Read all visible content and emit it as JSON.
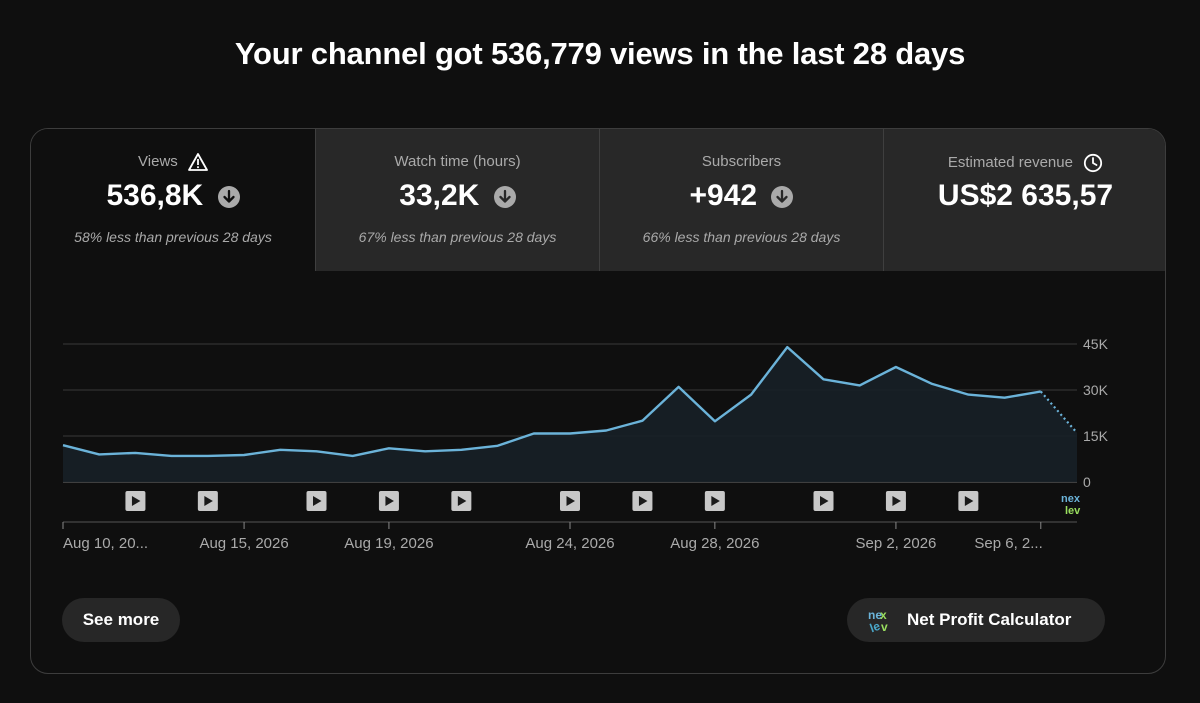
{
  "headline": "Your channel got 536,779 views in the last 28 days",
  "tabs": [
    {
      "label": "Views",
      "value": "536,8K",
      "note": "58% less than previous 28 days",
      "icon": "warning-icon",
      "trend_icon": "arrow-down-icon"
    },
    {
      "label": "Watch time (hours)",
      "value": "33,2K",
      "note": "67% less than previous 28 days",
      "trend_icon": "arrow-down-icon"
    },
    {
      "label": "Subscribers",
      "value": "+942",
      "note": "66% less than previous 28 days",
      "trend_icon": "arrow-down-icon"
    },
    {
      "label": "Estimated revenue",
      "value": "US$2 635,57",
      "note": "",
      "icon": "clock-icon"
    }
  ],
  "buttons": {
    "see_more": "See more",
    "calculator": "Net Profit Calculator",
    "calculator_logo": "nexlev"
  },
  "chart_data": {
    "type": "area",
    "ylim": [
      0,
      45000
    ],
    "y_ticks": [
      {
        "value": 0,
        "label": "0"
      },
      {
        "value": 15000,
        "label": "15K"
      },
      {
        "value": 30000,
        "label": "30K"
      },
      {
        "value": 45000,
        "label": "45K"
      }
    ],
    "x_ticks": [
      {
        "index": 0,
        "label": "Aug 10, 20..."
      },
      {
        "index": 5,
        "label": "Aug 15, 2026"
      },
      {
        "index": 9,
        "label": "Aug 19, 2026"
      },
      {
        "index": 14,
        "label": "Aug 24, 2026"
      },
      {
        "index": 18,
        "label": "Aug 28, 2026"
      },
      {
        "index": 23,
        "label": "Sep 2, 2026"
      },
      {
        "index": 27,
        "label": "Sep 6, 2..."
      }
    ],
    "series": [
      {
        "values": [
          12000,
          9000,
          9500,
          8500,
          8500,
          8800,
          10500,
          10000,
          8500,
          11000,
          10000,
          10500,
          11800,
          15800,
          15800,
          16800,
          20000,
          31000,
          19800,
          28500,
          44000,
          33500,
          31500,
          37500,
          32000,
          28500,
          27500,
          29500,
          16000
        ],
        "projected_from_index": 27,
        "color": "#6bb3d9"
      }
    ],
    "video_markers": [
      2,
      4,
      7,
      9,
      11,
      14,
      16,
      18,
      21,
      23,
      25
    ],
    "end_marker_logo": "nexlev",
    "grid": true
  }
}
